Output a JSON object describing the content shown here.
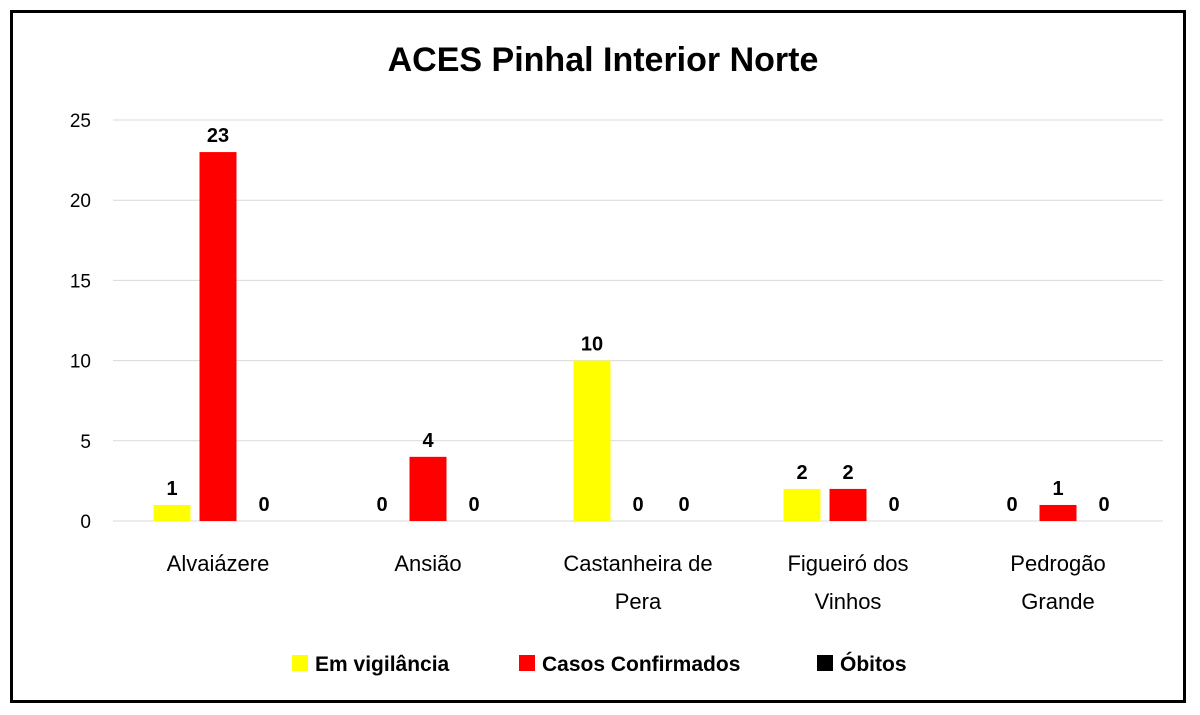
{
  "chart_data": {
    "type": "bar",
    "title": "ACES Pinhal Interior Norte",
    "xlabel": "",
    "ylabel": "",
    "ylim": [
      0,
      25
    ],
    "yticks": [
      0,
      5,
      10,
      15,
      20,
      25
    ],
    "grid": true,
    "legend_position": "bottom",
    "categories": [
      [
        "Alvaiázere"
      ],
      [
        "Ansião"
      ],
      [
        "Castanheira de",
        "Pera"
      ],
      [
        "Figueiró dos",
        "Vinhos"
      ],
      [
        "Pedrogão",
        "Grande"
      ]
    ],
    "series": [
      {
        "name": "Em vigilância",
        "color": "#FFFF00",
        "values": [
          1,
          0,
          10,
          2,
          0
        ]
      },
      {
        "name": "Casos Confirmados",
        "color": "#FF0000",
        "values": [
          23,
          4,
          0,
          2,
          1
        ]
      },
      {
        "name": "Óbitos",
        "color": "#000000",
        "values": [
          0,
          0,
          0,
          0,
          0
        ]
      }
    ]
  }
}
